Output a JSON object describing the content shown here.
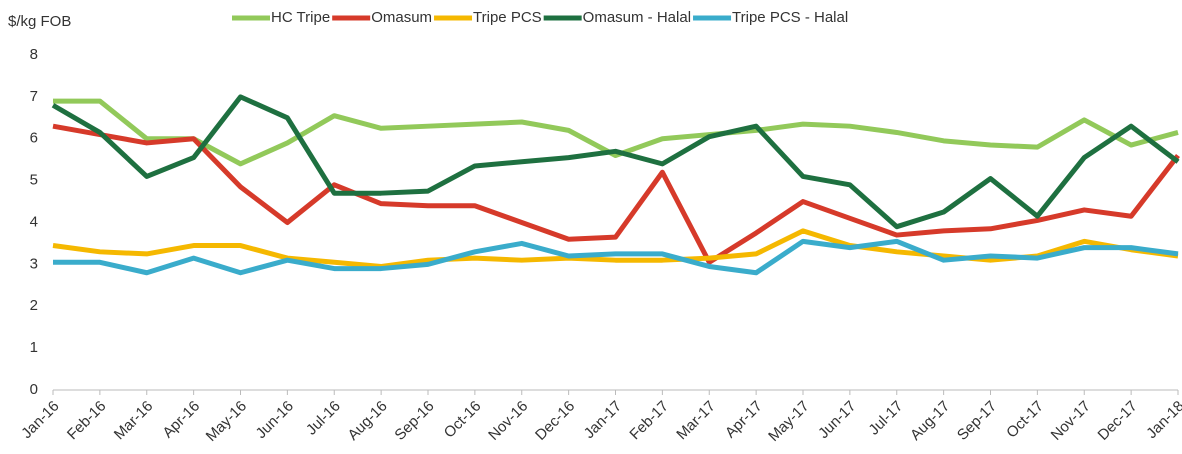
{
  "chart_data": {
    "type": "line",
    "y_axis_label": "$/kg FOB",
    "categories": [
      "Jan-16",
      "Feb-16",
      "Mar-16",
      "Apr-16",
      "May-16",
      "Jun-16",
      "Jul-16",
      "Aug-16",
      "Sep-16",
      "Oct-16",
      "Nov-16",
      "Dec-16",
      "Jan-17",
      "Feb-17",
      "Mar-17",
      "Apr-17",
      "May-17",
      "Jun-17",
      "Jul-17",
      "Aug-17",
      "Sep-17",
      "Oct-17",
      "Nov-17",
      "Dec-17",
      "Jan-18"
    ],
    "series": [
      {
        "name": "HC Tripe",
        "color": "#92c95a",
        "values": [
          6.9,
          6.9,
          6.0,
          6.0,
          5.4,
          5.9,
          6.55,
          6.25,
          6.3,
          6.35,
          6.4,
          6.2,
          5.6,
          6.0,
          6.1,
          6.2,
          6.35,
          6.3,
          6.15,
          5.95,
          5.85,
          5.8,
          6.45,
          5.85,
          6.15
        ]
      },
      {
        "name": "Omasum",
        "color": "#d63a2a",
        "values": [
          6.3,
          6.1,
          5.9,
          6.0,
          4.85,
          4.0,
          4.9,
          4.45,
          4.4,
          4.4,
          4.0,
          3.6,
          3.65,
          5.2,
          3.05,
          3.75,
          4.5,
          4.1,
          3.7,
          3.8,
          3.85,
          4.05,
          4.3,
          4.15,
          5.6
        ]
      },
      {
        "name": "Tripe PCS",
        "color": "#f5b800",
        "values": [
          3.45,
          3.3,
          3.25,
          3.45,
          3.45,
          3.15,
          3.05,
          2.95,
          3.1,
          3.15,
          3.1,
          3.15,
          3.1,
          3.1,
          3.15,
          3.25,
          3.8,
          3.45,
          3.3,
          3.2,
          3.1,
          3.2,
          3.55,
          3.35,
          3.2
        ]
      },
      {
        "name": "Omasum - Halal",
        "color": "#1e7040",
        "values": [
          6.8,
          6.15,
          5.1,
          5.55,
          7.0,
          6.5,
          4.7,
          4.7,
          4.75,
          5.35,
          5.45,
          5.55,
          5.7,
          5.4,
          6.05,
          6.3,
          5.1,
          4.9,
          3.9,
          4.25,
          5.05,
          4.15,
          5.55,
          6.3,
          5.45
        ]
      },
      {
        "name": "Tripe PCS - Halal",
        "color": "#3aaccb",
        "values": [
          3.05,
          3.05,
          2.8,
          3.15,
          2.8,
          3.1,
          2.9,
          2.9,
          3.0,
          3.3,
          3.5,
          3.2,
          3.25,
          3.25,
          2.95,
          2.8,
          3.55,
          3.4,
          3.55,
          3.1,
          3.2,
          3.15,
          3.4,
          3.4,
          3.25
        ]
      }
    ],
    "ylim": [
      0,
      8
    ],
    "yticks": [
      0,
      1,
      2,
      3,
      4,
      5,
      6,
      7,
      8
    ],
    "grid": false,
    "legend": "top"
  }
}
